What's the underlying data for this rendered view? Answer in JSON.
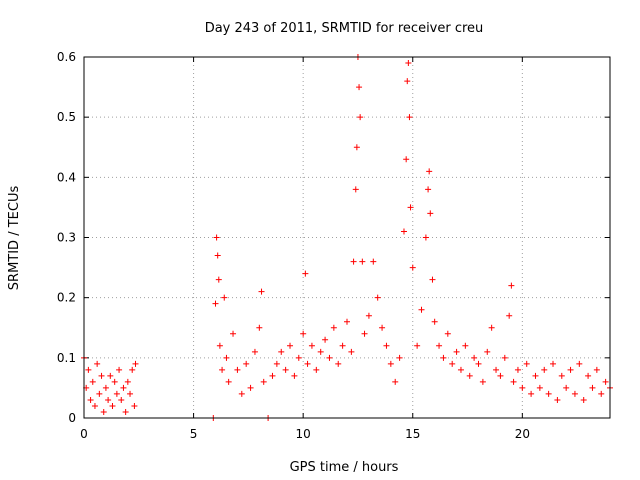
{
  "chart_data": {
    "type": "scatter",
    "title": "Day 243 of 2011, SRMTID for receiver creu",
    "xlabel": "GPS time / hours",
    "ylabel": "SRMTID / TECUs",
    "xlim": [
      0,
      24
    ],
    "ylim": [
      0,
      0.6
    ],
    "x_ticks": [
      "0",
      "5",
      "10",
      "15",
      "20"
    ],
    "y_ticks": [
      "0",
      "0.1",
      "0.2",
      "0.3",
      "0.4",
      "0.5",
      "0.6"
    ],
    "grid": true,
    "legend": "none",
    "marker": "+",
    "color": "#ff0000",
    "points": [
      [
        0.0,
        0.1
      ],
      [
        0.1,
        0.05
      ],
      [
        0.2,
        0.08
      ],
      [
        0.3,
        0.03
      ],
      [
        0.4,
        0.06
      ],
      [
        0.5,
        0.02
      ],
      [
        0.6,
        0.09
      ],
      [
        0.7,
        0.04
      ],
      [
        0.8,
        0.07
      ],
      [
        0.9,
        0.01
      ],
      [
        1.0,
        0.05
      ],
      [
        1.1,
        0.03
      ],
      [
        1.2,
        0.07
      ],
      [
        1.3,
        0.02
      ],
      [
        1.4,
        0.06
      ],
      [
        1.5,
        0.04
      ],
      [
        1.6,
        0.08
      ],
      [
        1.7,
        0.03
      ],
      [
        1.8,
        0.05
      ],
      [
        1.9,
        0.01
      ],
      [
        2.0,
        0.06
      ],
      [
        2.1,
        0.04
      ],
      [
        2.2,
        0.08
      ],
      [
        2.3,
        0.02
      ],
      [
        2.35,
        0.09
      ],
      [
        5.9,
        0.0
      ],
      [
        6.0,
        0.19
      ],
      [
        6.05,
        0.3
      ],
      [
        6.1,
        0.27
      ],
      [
        6.15,
        0.23
      ],
      [
        6.2,
        0.12
      ],
      [
        6.3,
        0.08
      ],
      [
        6.4,
        0.2
      ],
      [
        6.5,
        0.1
      ],
      [
        6.6,
        0.06
      ],
      [
        6.8,
        0.14
      ],
      [
        7.0,
        0.08
      ],
      [
        7.2,
        0.04
      ],
      [
        7.4,
        0.09
      ],
      [
        7.6,
        0.05
      ],
      [
        7.8,
        0.11
      ],
      [
        8.0,
        0.15
      ],
      [
        8.1,
        0.21
      ],
      [
        8.2,
        0.06
      ],
      [
        8.4,
        0.0
      ],
      [
        8.6,
        0.07
      ],
      [
        8.8,
        0.09
      ],
      [
        9.0,
        0.11
      ],
      [
        9.2,
        0.08
      ],
      [
        9.4,
        0.12
      ],
      [
        9.6,
        0.07
      ],
      [
        9.8,
        0.1
      ],
      [
        10.0,
        0.14
      ],
      [
        10.1,
        0.24
      ],
      [
        10.2,
        0.09
      ],
      [
        10.4,
        0.12
      ],
      [
        10.6,
        0.08
      ],
      [
        10.8,
        0.11
      ],
      [
        11.0,
        0.13
      ],
      [
        11.2,
        0.1
      ],
      [
        11.4,
        0.15
      ],
      [
        11.6,
        0.09
      ],
      [
        11.8,
        0.12
      ],
      [
        12.0,
        0.16
      ],
      [
        12.2,
        0.11
      ],
      [
        12.3,
        0.26
      ],
      [
        12.4,
        0.38
      ],
      [
        12.45,
        0.45
      ],
      [
        12.5,
        0.6
      ],
      [
        12.55,
        0.55
      ],
      [
        12.6,
        0.5
      ],
      [
        12.7,
        0.26
      ],
      [
        12.8,
        0.14
      ],
      [
        13.0,
        0.17
      ],
      [
        13.2,
        0.26
      ],
      [
        13.4,
        0.2
      ],
      [
        13.6,
        0.15
      ],
      [
        13.8,
        0.12
      ],
      [
        14.0,
        0.09
      ],
      [
        14.2,
        0.06
      ],
      [
        14.4,
        0.1
      ],
      [
        14.6,
        0.31
      ],
      [
        14.7,
        0.43
      ],
      [
        14.75,
        0.56
      ],
      [
        14.8,
        0.59
      ],
      [
        14.85,
        0.5
      ],
      [
        14.9,
        0.35
      ],
      [
        15.0,
        0.25
      ],
      [
        15.2,
        0.12
      ],
      [
        15.4,
        0.18
      ],
      [
        15.6,
        0.3
      ],
      [
        15.7,
        0.38
      ],
      [
        15.75,
        0.41
      ],
      [
        15.8,
        0.34
      ],
      [
        15.9,
        0.23
      ],
      [
        16.0,
        0.16
      ],
      [
        16.2,
        0.12
      ],
      [
        16.4,
        0.1
      ],
      [
        16.6,
        0.14
      ],
      [
        16.8,
        0.09
      ],
      [
        17.0,
        0.11
      ],
      [
        17.2,
        0.08
      ],
      [
        17.4,
        0.12
      ],
      [
        17.6,
        0.07
      ],
      [
        17.8,
        0.1
      ],
      [
        18.0,
        0.09
      ],
      [
        18.2,
        0.06
      ],
      [
        18.4,
        0.11
      ],
      [
        18.6,
        0.15
      ],
      [
        18.8,
        0.08
      ],
      [
        19.0,
        0.07
      ],
      [
        19.2,
        0.1
      ],
      [
        19.4,
        0.17
      ],
      [
        19.5,
        0.22
      ],
      [
        19.6,
        0.06
      ],
      [
        19.8,
        0.08
      ],
      [
        20.0,
        0.05
      ],
      [
        20.2,
        0.09
      ],
      [
        20.4,
        0.04
      ],
      [
        20.6,
        0.07
      ],
      [
        20.8,
        0.05
      ],
      [
        21.0,
        0.08
      ],
      [
        21.2,
        0.04
      ],
      [
        21.4,
        0.09
      ],
      [
        21.6,
        0.03
      ],
      [
        21.8,
        0.07
      ],
      [
        22.0,
        0.05
      ],
      [
        22.2,
        0.08
      ],
      [
        22.4,
        0.04
      ],
      [
        22.6,
        0.09
      ],
      [
        22.8,
        0.03
      ],
      [
        23.0,
        0.07
      ],
      [
        23.2,
        0.05
      ],
      [
        23.4,
        0.08
      ],
      [
        23.6,
        0.04
      ],
      [
        23.8,
        0.06
      ],
      [
        24.0,
        0.05
      ]
    ]
  }
}
